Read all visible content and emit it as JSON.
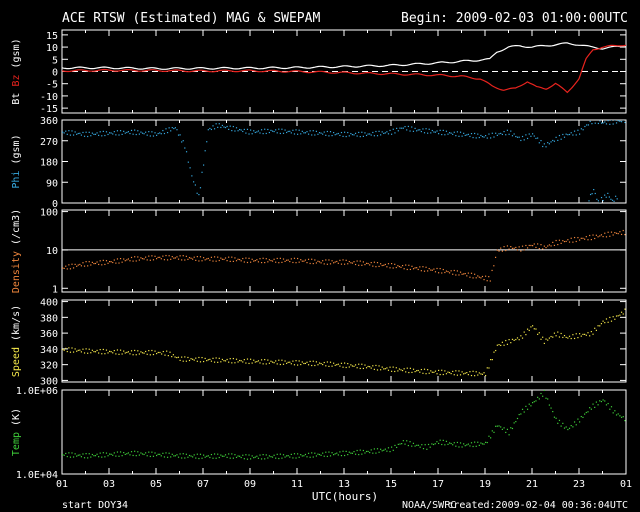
{
  "header": {
    "title": "ACE RTSW (Estimated) MAG & SWEPAM",
    "begin": "Begin: 2009-02-03 01:00:00UTC"
  },
  "footer": {
    "start_doy_label": "start DOY:",
    "start_doy": "34",
    "agency": "NOAA/SWPC",
    "created": "created:2009-02-04 00:36:04UTC"
  },
  "colors": {
    "background": "#000000",
    "axes": "#ffffff",
    "bt": "#ffffff",
    "bz": "#e8231e",
    "phi": "#36a9e0",
    "density": "#f2873d",
    "speed": "#f5e84a",
    "temp": "#3fd03a"
  },
  "chart_data": {
    "type": "scatter",
    "xlabel": "UTC(hours)",
    "x_ticks": [
      "01",
      "03",
      "05",
      "07",
      "09",
      "11",
      "13",
      "15",
      "17",
      "19",
      "21",
      "23",
      "01"
    ],
    "xlim": [
      1,
      25
    ],
    "panels": [
      {
        "id": "mag",
        "ylabel_parts": [
          {
            "text": "Bt",
            "color": "#ffffff"
          },
          {
            "text": "Bz",
            "color": "#e8231e"
          },
          {
            "text": "(gsm)",
            "color": "#ffffff"
          }
        ],
        "ylim": [
          -17,
          17
        ],
        "y_ticks": [
          15,
          10,
          5,
          0,
          -5,
          -10,
          -15
        ],
        "y_tick_labels": [
          "15",
          "10",
          "5",
          "0",
          "-5",
          "-10",
          "-15"
        ],
        "zero_line": true,
        "series": [
          {
            "name": "Bt",
            "color": "#ffffff",
            "style": "line",
            "x": [
              1,
              3,
              5,
              7,
              9,
              11,
              13,
              15,
              17,
              18.5,
              19.2,
              19.5,
              20,
              20.5,
              21,
              21.5,
              22,
              22.5,
              23,
              23.5,
              24,
              24.5,
              25
            ],
            "y": [
              1.5,
              1.5,
              1.2,
              1.3,
              1.4,
              1.6,
              2,
              2.5,
              3.5,
              4.5,
              5,
              8,
              10,
              10.5,
              10,
              10.5,
              11,
              11.5,
              11,
              10,
              9.5,
              10,
              10.5
            ]
          },
          {
            "name": "Bz",
            "color": "#e8231e",
            "style": "line",
            "x": [
              1,
              3,
              5,
              7,
              9,
              11,
              13,
              15,
              17,
              18,
              18.8,
              19.3,
              19.8,
              20.3,
              20.8,
              21.2,
              21.6,
              22,
              22.5,
              23,
              23.3,
              23.6,
              24,
              24.5,
              25
            ],
            "y": [
              0.3,
              0.5,
              0.4,
              0.2,
              0.3,
              0,
              -0.5,
              -1,
              -1.5,
              -2,
              -3,
              -6,
              -7.5,
              -7,
              -4,
              -6.5,
              -7,
              -5,
              -8.5,
              -3,
              5,
              9,
              10,
              10.5,
              11
            ]
          }
        ]
      },
      {
        "id": "phi",
        "ylabel_parts": [
          {
            "text": "Phi",
            "color": "#36a9e0"
          },
          {
            "text": "(gsm)",
            "color": "#ffffff"
          }
        ],
        "ylim": [
          0,
          360
        ],
        "y_ticks": [
          360,
          270,
          180,
          90,
          0
        ],
        "y_tick_labels": [
          "360",
          "270",
          "180",
          "90",
          "0"
        ],
        "series": [
          {
            "name": "Phi",
            "color": "#36a9e0",
            "style": "dots",
            "x": [
              1,
              2,
              3,
              4,
              5,
              5.8,
              6.2,
              6.5,
              6.8,
              7.2,
              7.6,
              8,
              9,
              10,
              11,
              12,
              13,
              14,
              15,
              15.5,
              16,
              17,
              18,
              19,
              19.5,
              20,
              20.5,
              21,
              21.5,
              22,
              22.5,
              23,
              23.3,
              23.6,
              24,
              24.5,
              25
            ],
            "y": [
              310,
              300,
              305,
              310,
              300,
              330,
              250,
              120,
              30,
              320,
              340,
              330,
              310,
              315,
              310,
              305,
              300,
              300,
              310,
              330,
              320,
              310,
              300,
              290,
              300,
              310,
              280,
              300,
              250,
              280,
              300,
              310,
              340,
              360,
              350,
              355,
              360
            ]
          },
          {
            "name": "Phi-low",
            "color": "#36a9e0",
            "style": "dots",
            "x": [
              23.4,
              23.6,
              23.8,
              24.2,
              24.4,
              24.6
            ],
            "y": [
              20,
              60,
              5,
              40,
              10,
              30
            ]
          }
        ]
      },
      {
        "id": "density",
        "ylabel_parts": [
          {
            "text": "Density",
            "color": "#f2873d"
          },
          {
            "text": "(/cm3)",
            "color": "#ffffff"
          }
        ],
        "scale": "log",
        "ylim": [
          0.8,
          110
        ],
        "y_ticks": [
          100,
          10,
          1
        ],
        "y_tick_labels": [
          "100",
          "10",
          "1"
        ],
        "ref_lines": [
          10
        ],
        "series": [
          {
            "name": "Density",
            "color": "#f2873d",
            "style": "dots",
            "x": [
              1,
              2,
              3,
              4,
              5,
              6,
              7,
              8,
              9,
              10,
              11,
              12,
              13,
              14,
              15,
              16,
              17,
              18,
              18.8,
              19.2,
              19.5,
              20,
              20.5,
              21,
              21.5,
              22,
              22.5,
              23,
              23.5,
              24,
              24.5,
              25
            ],
            "y": [
              3.5,
              4.5,
              5,
              6,
              6.5,
              6.5,
              6,
              6,
              5.5,
              5.5,
              5.5,
              5,
              5,
              4.5,
              4,
              3.5,
              3,
              2.5,
              2,
              1.8,
              10,
              12,
              11,
              14,
              12,
              16,
              18,
              20,
              22,
              25,
              28,
              30
            ]
          }
        ]
      },
      {
        "id": "speed",
        "ylabel_parts": [
          {
            "text": "Speed",
            "color": "#f5e84a"
          },
          {
            "text": "(km/s)",
            "color": "#ffffff"
          }
        ],
        "ylim": [
          298,
          402
        ],
        "y_ticks": [
          400,
          380,
          360,
          340,
          320,
          300
        ],
        "y_tick_labels": [
          "400",
          "380",
          "360",
          "340",
          "320",
          "300"
        ],
        "series": [
          {
            "name": "Speed",
            "color": "#f5e84a",
            "style": "dots",
            "x": [
              1,
              2,
              3,
              4,
              5,
              5.5,
              6,
              7,
              8,
              9,
              10,
              11,
              12,
              13,
              14,
              15,
              16,
              17,
              18,
              19,
              19.5,
              20,
              20.5,
              21,
              21.5,
              22,
              22.5,
              23,
              23.5,
              24,
              24.5,
              25
            ],
            "y": [
              340,
              338,
              337,
              336,
              336,
              335,
              328,
              327,
              326,
              325,
              324,
              323,
              322,
              320,
              318,
              315,
              313,
              311,
              310,
              309,
              345,
              350,
              355,
              370,
              350,
              360,
              355,
              358,
              360,
              375,
              380,
              390
            ]
          }
        ]
      },
      {
        "id": "temp",
        "ylabel_parts": [
          {
            "text": "Temp",
            "color": "#3fd03a"
          },
          {
            "text": "(K)",
            "color": "#ffffff"
          }
        ],
        "scale": "log",
        "ylim": [
          10000,
          1000000
        ],
        "y_ticks": [
          1000000,
          10000
        ],
        "y_tick_labels": [
          "1.0E+06",
          "1.0E+04"
        ],
        "series": [
          {
            "name": "Temp",
            "color": "#3fd03a",
            "style": "dots",
            "x": [
              1,
              2,
              3,
              4,
              5,
              6,
              7,
              8,
              9,
              10,
              11,
              12,
              13,
              14,
              15,
              15.5,
              16,
              16.5,
              17,
              18,
              19,
              19.5,
              20,
              20.5,
              21,
              21.5,
              22,
              22.5,
              23,
              23.5,
              24,
              24.5,
              25
            ],
            "y": [
              30000,
              28000,
              30000,
              32000,
              30000,
              28000,
              27000,
              28000,
              26000,
              27000,
              28000,
              30000,
              32000,
              35000,
              40000,
              60000,
              50000,
              45000,
              60000,
              50000,
              55000,
              150000,
              100000,
              300000,
              500000,
              900000,
              200000,
              120000,
              200000,
              400000,
              600000,
              300000,
              200000
            ]
          }
        ]
      }
    ]
  }
}
